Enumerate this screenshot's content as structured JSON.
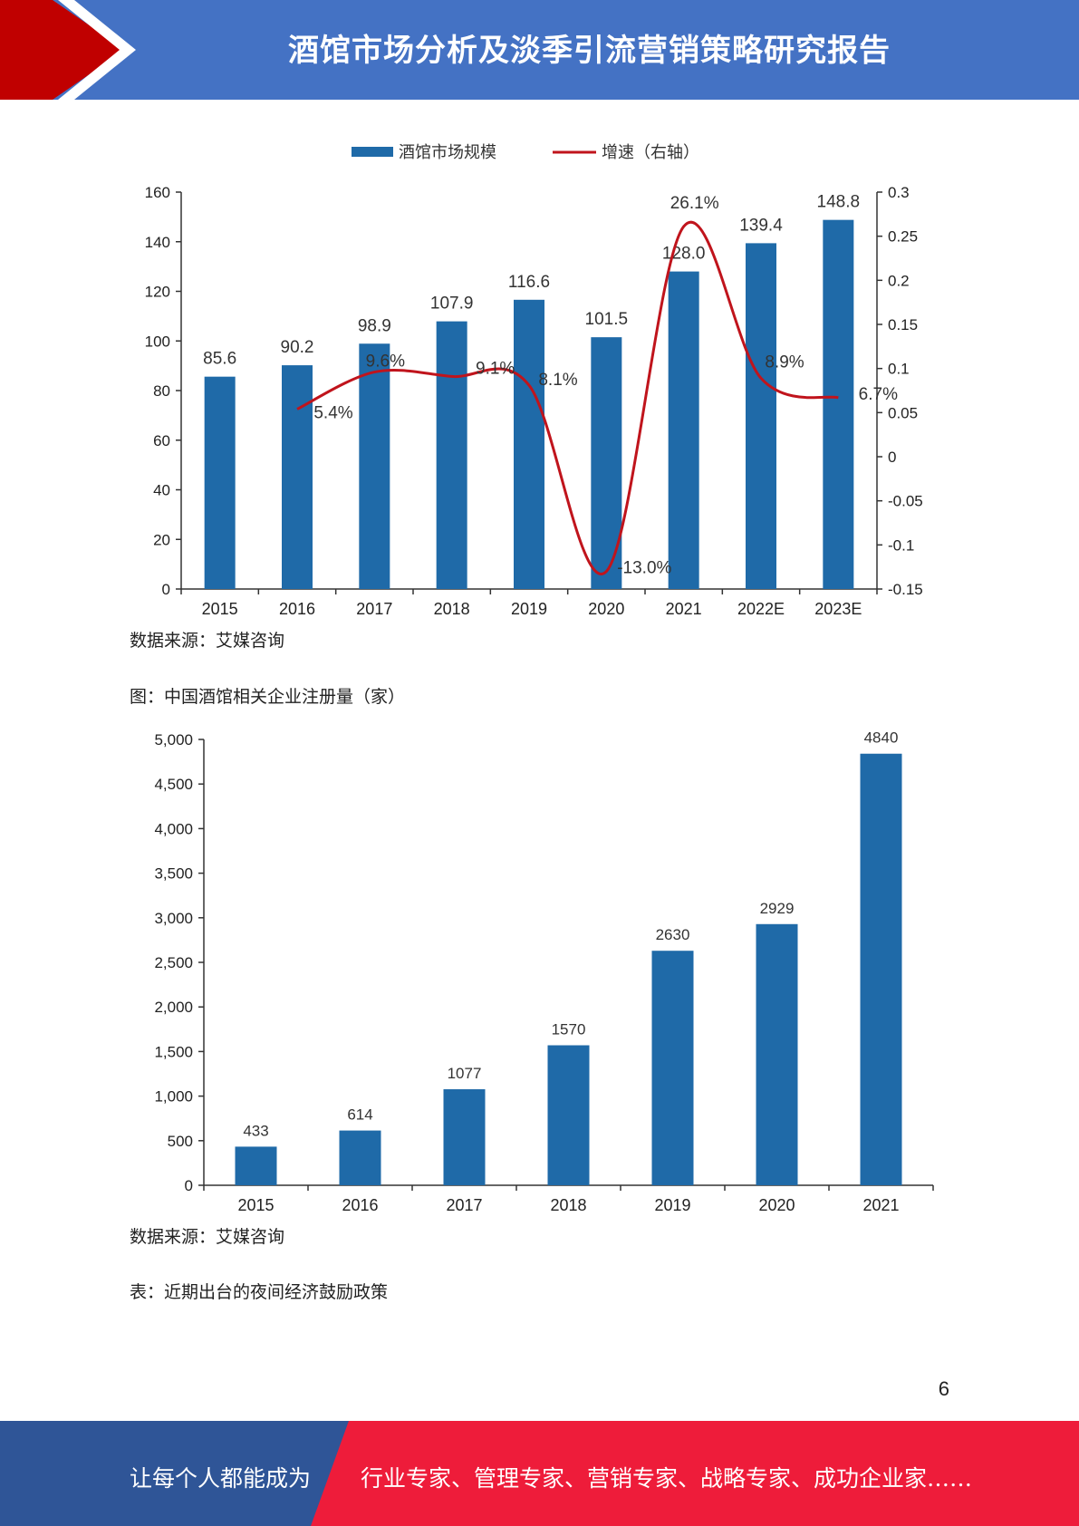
{
  "header": {
    "title": "酒馆市场分析及淡季引流营销策略研究报告"
  },
  "colors": {
    "header_blue": "#4472c4",
    "header_red": "#c00000",
    "bar_blue": "#1f6aa8",
    "line_red": "#c0141c",
    "footer_blue": "#2f5597",
    "footer_red": "#ee1c3a"
  },
  "chart_data": [
    {
      "type": "bar",
      "categories": [
        "2015",
        "2016",
        "2017",
        "2018",
        "2019",
        "2020",
        "2021",
        "2022E",
        "2023E"
      ],
      "series": [
        {
          "name": "酒馆市场规模",
          "type": "bar",
          "axis": "left",
          "values": [
            85.6,
            90.2,
            98.9,
            107.9,
            116.6,
            101.5,
            128.0,
            139.4,
            148.8
          ],
          "labels": [
            "85.6",
            "90.2",
            "98.9",
            "107.9",
            "116.6",
            "101.5",
            "128.0",
            "139.4",
            "148.8"
          ]
        },
        {
          "name": "增速（右轴）",
          "type": "line",
          "axis": "right",
          "values": [
            null,
            0.054,
            0.096,
            0.091,
            0.081,
            -0.13,
            0.261,
            0.089,
            0.067
          ],
          "labels": [
            "",
            "5.4%",
            "9.6%",
            "9.1%",
            "8.1%",
            "-13.0%",
            "26.1%",
            "8.9%",
            "6.7%"
          ]
        }
      ],
      "ylim": [
        0,
        160
      ],
      "yticks": [
        "0",
        "20",
        "40",
        "60",
        "80",
        "100",
        "120",
        "140",
        "160"
      ],
      "y2lim": [
        -0.15,
        0.3
      ],
      "y2ticks": [
        "-0.15",
        "-0.1",
        "-0.05",
        "0",
        "0.05",
        "0.1",
        "0.15",
        "0.2",
        "0.25",
        "0.3"
      ],
      "legend": "top-center",
      "grid": false
    },
    {
      "type": "bar",
      "categories": [
        "2015",
        "2016",
        "2017",
        "2018",
        "2019",
        "2020",
        "2021"
      ],
      "series": [
        {
          "values": [
            433,
            614,
            1077,
            1570,
            2630,
            2929,
            4840
          ],
          "labels": [
            "433",
            "614",
            "1077",
            "1570",
            "2630",
            "2929",
            "4840"
          ]
        }
      ],
      "ylim": [
        0,
        5000
      ],
      "yticks": [
        "0",
        "500",
        "1,000",
        "1,500",
        "2,000",
        "2,500",
        "3,000",
        "3,500",
        "4,000",
        "4,500",
        "5,000"
      ],
      "grid": false
    }
  ],
  "source1": "数据来源：艾媒咨询",
  "figure2_caption": "图：中国酒馆相关企业注册量（家）",
  "source2": "数据来源：艾媒咨询",
  "table_caption": "表：近期出台的夜间经济鼓励政策",
  "page_number": "6",
  "footer": {
    "left_text": "让每个人都能成为",
    "right_text": "行业专家、管理专家、营销专家、战略专家、成功企业家……"
  }
}
